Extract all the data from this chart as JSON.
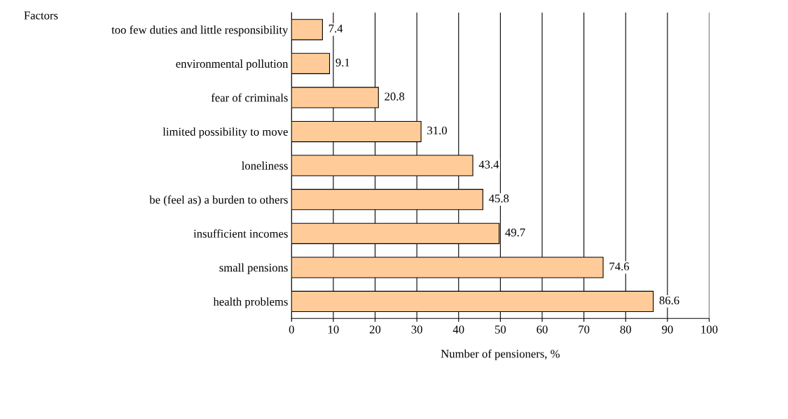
{
  "chart_data": {
    "type": "bar",
    "orientation": "horizontal",
    "categories": [
      "too few duties and little responsibility",
      "environmental pollution",
      "fear of criminals",
      "limited possibility to move",
      "loneliness",
      "be (feel as) a burden to others",
      "insufficient incomes",
      "small pensions",
      "health problems"
    ],
    "values": [
      7.4,
      9.1,
      20.8,
      31.0,
      43.4,
      45.8,
      49.7,
      74.6,
      86.6
    ],
    "value_labels": [
      "7.4",
      "9.1",
      "20.8",
      "31.0",
      "43.4",
      "45.8",
      "49.7",
      "74.6",
      "86.6"
    ],
    "color": "#ffcc99",
    "xlim": [
      0,
      100
    ],
    "xticks": [
      0,
      10,
      20,
      30,
      40,
      50,
      60,
      70,
      80,
      90,
      100
    ],
    "xlabel": "Number of pensioners, %",
    "ylabel": "Factors",
    "grid": "x",
    "legend": false
  }
}
